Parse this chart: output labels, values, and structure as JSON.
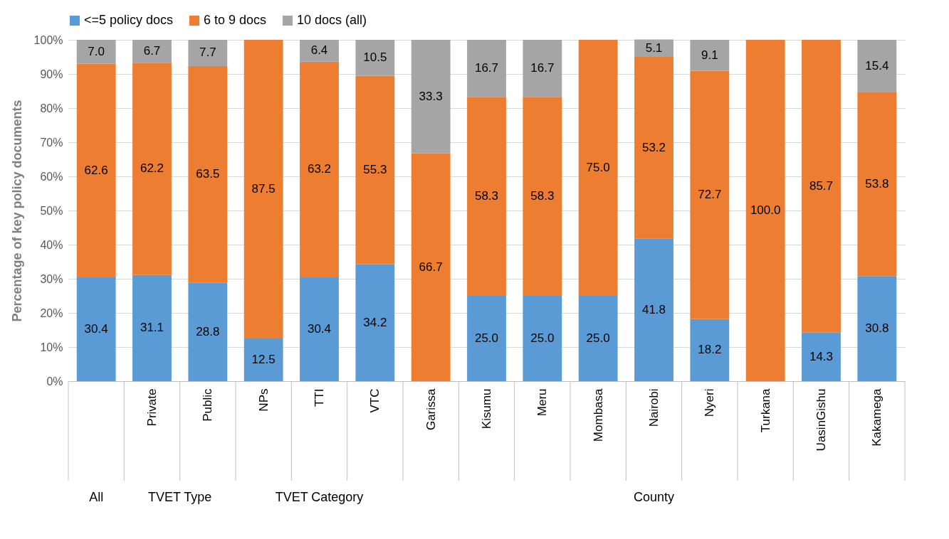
{
  "chart_data": {
    "type": "bar",
    "stacked": true,
    "ylabel": "Percentage of key policy documents",
    "categories": [
      null,
      "Private",
      "Public",
      "NPs",
      "TTI",
      "VTC",
      "Garissa",
      "Kisumu",
      "Meru",
      "Mombasa",
      "Nairobi",
      "Nyeri",
      "Turkana",
      "UasinGishu",
      "Kakamega"
    ],
    "annotations": [
      "All",
      "TVET Type",
      "TVET Category",
      "County"
    ],
    "series": [
      {
        "name": "<=5 policy docs",
        "color": "#5b9bd5",
        "values": [
          30.4,
          31.1,
          28.8,
          12.5,
          30.4,
          34.2,
          null,
          25.0,
          25.0,
          25.0,
          41.8,
          18.2,
          null,
          14.3,
          30.8
        ],
        "value_labels": [
          "30.4",
          "31.1",
          "28.8",
          "12.5",
          "30.4",
          "34.2",
          null,
          "25.0",
          "25.0",
          "25.0",
          "41.8",
          "18.2",
          null,
          "14.3",
          "30.8"
        ]
      },
      {
        "name": "6 to 9 docs",
        "color": "#ed7d31",
        "values": [
          62.6,
          62.2,
          63.5,
          87.5,
          63.2,
          55.3,
          66.7,
          58.3,
          58.3,
          75.0,
          53.2,
          72.7,
          100.0,
          85.7,
          53.8
        ],
        "value_labels": [
          "62.6",
          "62.2",
          "63.5",
          "87.5",
          "63.2",
          "55.3",
          "66.7",
          "58.3",
          "58.3",
          "75.0",
          "53.2",
          "72.7",
          "100.0",
          "85.7",
          "53.8"
        ]
      },
      {
        "name": "10 docs (all)",
        "color": "#a5a5a5",
        "values": [
          7.0,
          6.7,
          7.7,
          null,
          6.4,
          10.5,
          33.3,
          16.7,
          16.7,
          null,
          5.1,
          9.1,
          null,
          null,
          15.4
        ],
        "value_labels": [
          "7.0",
          "6.7",
          "7.7",
          null,
          "6.4",
          "10.5",
          "33.3",
          "16.7",
          "16.7",
          null,
          "5.1",
          "9.1",
          null,
          null,
          "15.4"
        ]
      }
    ],
    "ylim": [
      0,
      100
    ],
    "yticks": [
      {
        "value": 0,
        "label": "0%"
      },
      {
        "value": 10,
        "label": "10%"
      },
      {
        "value": 20,
        "label": "20%"
      },
      {
        "value": 30,
        "label": "30%"
      },
      {
        "value": 40,
        "label": "40%"
      },
      {
        "value": 50,
        "label": "50%"
      },
      {
        "value": 60,
        "label": "60%"
      },
      {
        "value": 70,
        "label": "70%"
      },
      {
        "value": 80,
        "label": "80%"
      },
      {
        "value": 90,
        "label": "90%"
      },
      {
        "value": 100,
        "label": "100%"
      }
    ],
    "grid": "y",
    "legend": "top"
  }
}
